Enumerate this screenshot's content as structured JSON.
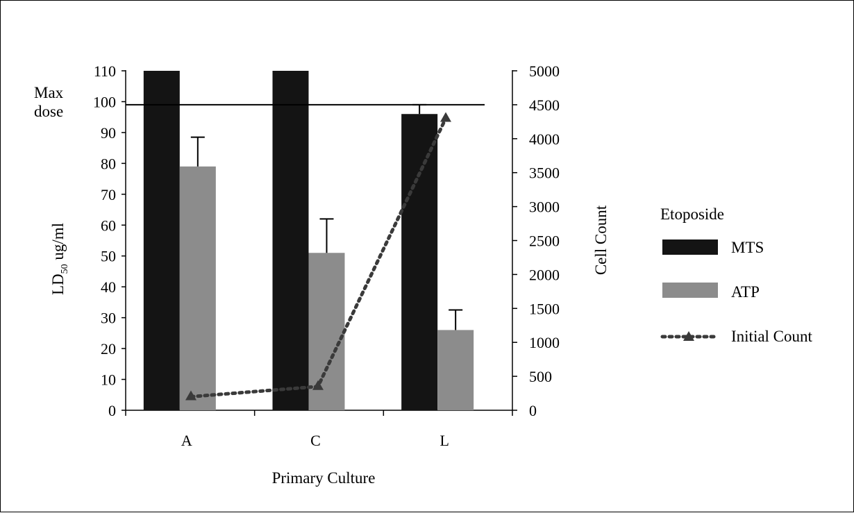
{
  "chart_data": {
    "type": "bar",
    "xlabel": "Primary Culture",
    "ylabel": "LD",
    "ylabel_sub": "50",
    "ylabel_unit": " ug/ml",
    "y2label": "Cell Count",
    "categories": [
      "A",
      "C",
      "L"
    ],
    "ylim": [
      0,
      110
    ],
    "y_ticks": [
      0,
      10,
      20,
      30,
      40,
      50,
      60,
      70,
      80,
      90,
      100,
      110
    ],
    "y2lim": [
      0,
      5000
    ],
    "y2_ticks": [
      0,
      500,
      1000,
      1500,
      2000,
      2500,
      3000,
      3500,
      4000,
      4500,
      5000
    ],
    "max_dose": {
      "value": 99,
      "label_line1": "Max",
      "label_line2": "dose"
    },
    "legend": {
      "title": "Etoposide",
      "position": "right"
    },
    "series": [
      {
        "name": "MTS",
        "kind": "bar",
        "axis": "left",
        "color": "#141414",
        "values": [
          110,
          110,
          96
        ],
        "errors": [
          null,
          null,
          3
        ]
      },
      {
        "name": "ATP",
        "kind": "bar",
        "axis": "left",
        "color": "#8c8c8c",
        "values": [
          79,
          51,
          26
        ],
        "errors": [
          9.5,
          11,
          6.5
        ]
      },
      {
        "name": "Initial Count",
        "kind": "line",
        "axis": "right",
        "color": "#3a3a3a",
        "values": [
          200,
          350,
          4300
        ]
      }
    ]
  }
}
